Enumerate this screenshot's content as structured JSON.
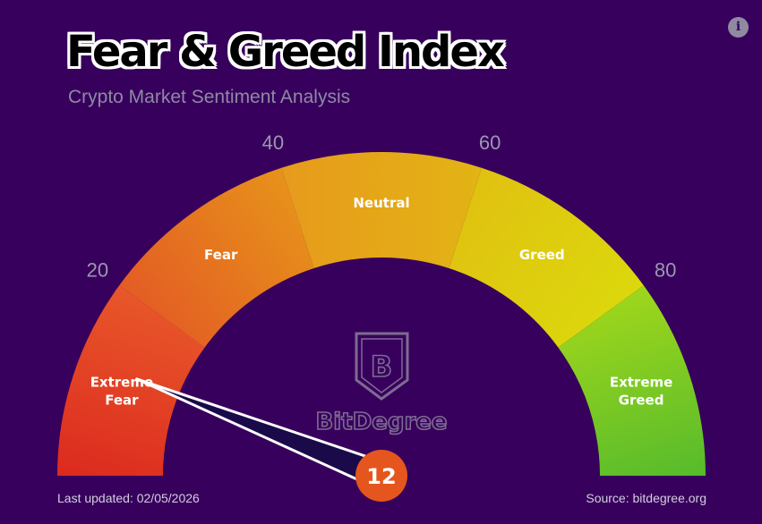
{
  "header": {
    "title": "Fear & Greed Index",
    "subtitle": "Crypto Market Sentiment Analysis"
  },
  "info_icon": "info-icon",
  "footer": {
    "last_updated": "Last updated: 02/05/2026",
    "source": "Source: bitdegree.org"
  },
  "watermark": {
    "brand": "BitDegree",
    "logo_letter": "B"
  },
  "chart_data": {
    "type": "gauge",
    "range": [
      0,
      100
    ],
    "value": 12,
    "value_label": "12",
    "zones": [
      {
        "label": "Extreme Fear",
        "lines": [
          "Extreme",
          "Fear"
        ],
        "from": 0,
        "to": 20,
        "color_start": "#dc2a1e",
        "color_end": "#e8572a"
      },
      {
        "label": "Fear",
        "lines": [
          "Fear"
        ],
        "from": 20,
        "to": 40,
        "color_start": "#e35c24",
        "color_end": "#e7921a"
      },
      {
        "label": "Neutral",
        "lines": [
          "Neutral"
        ],
        "from": 40,
        "to": 60,
        "color_start": "#e79a1c",
        "color_end": "#e2b414"
      },
      {
        "label": "Greed",
        "lines": [
          "Greed"
        ],
        "from": 60,
        "to": 80,
        "color_start": "#e0c111",
        "color_end": "#dcd80c"
      },
      {
        "label": "Extreme Greed",
        "lines": [
          "Extreme",
          "Greed"
        ],
        "from": 80,
        "to": 100,
        "color_start": "#9fd61c",
        "color_end": "#56bb2c"
      }
    ],
    "ticks": [
      {
        "value": 20,
        "label": "20"
      },
      {
        "value": 40,
        "label": "40"
      },
      {
        "value": 60,
        "label": "60"
      },
      {
        "value": 80,
        "label": "80"
      }
    ],
    "colors": {
      "needle": "#1a0a4a",
      "needle_outline": "#ffffff",
      "value_badge": "#e4561d",
      "background": "#37005c"
    }
  }
}
